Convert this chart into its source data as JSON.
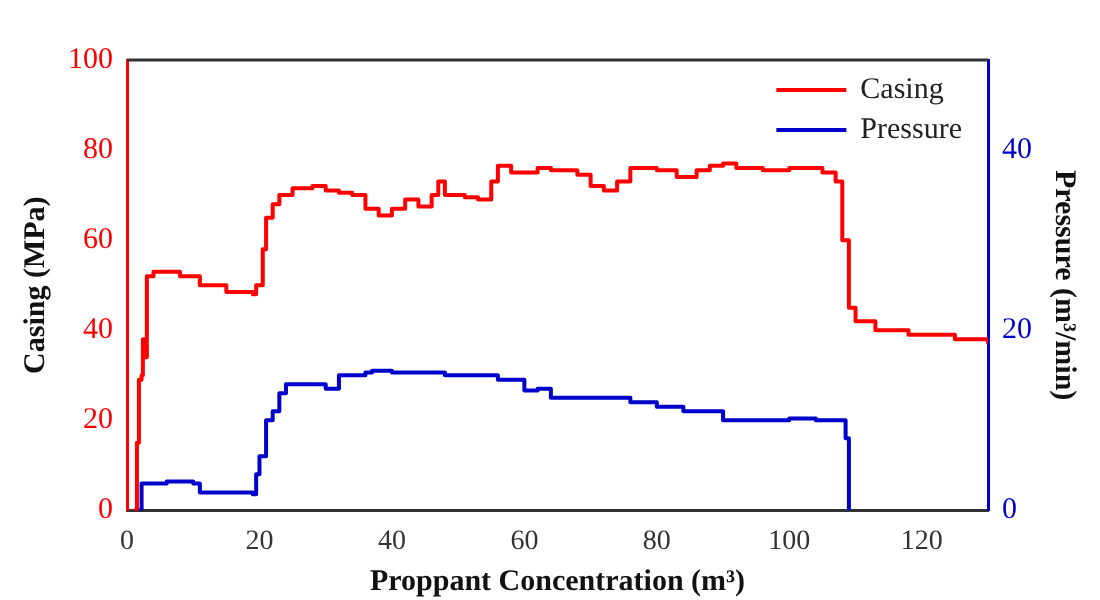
{
  "chart_data": {
    "type": "step",
    "xlabel": "Proppant Concentration (m³)",
    "ylabel": "Casing (MPa)",
    "y2label": "Pressure (m³/min)",
    "xlim": [
      0,
      130
    ],
    "xticks": [
      0,
      20,
      40,
      60,
      80,
      100,
      120
    ],
    "ylim": [
      0,
      100
    ],
    "yticks": [
      0,
      20,
      40,
      60,
      80,
      100
    ],
    "y2lim": [
      0,
      50
    ],
    "y2ticks": [
      0,
      20,
      40
    ],
    "grid": false,
    "legend": "top right",
    "marker": "none",
    "line_style": "solid",
    "series": [
      {
        "name": "Casing",
        "color": "#ff0000",
        "x": [
          1,
          1.5,
          1.8,
          2.2,
          2.4,
          2.6,
          3,
          4,
          8,
          11,
          15,
          19,
          19.5,
          20.5,
          21,
          22,
          23,
          25,
          28,
          30,
          32,
          34,
          36,
          38,
          40,
          42,
          44,
          46,
          47,
          48,
          51,
          53,
          55,
          56,
          58,
          62,
          64,
          68,
          70,
          72,
          74,
          76,
          80,
          83,
          86,
          88,
          90,
          92,
          96,
          100,
          105,
          107,
          108,
          109,
          110,
          113,
          118,
          125,
          130
        ],
        "values": [
          0,
          15,
          29,
          30,
          38,
          34,
          52,
          53,
          52,
          50,
          48.5,
          48,
          50,
          58,
          65,
          68,
          70,
          71.5,
          72,
          71,
          70.5,
          70,
          67,
          65.5,
          67,
          69,
          67.5,
          70,
          73,
          70,
          69.5,
          69,
          73,
          76.5,
          75,
          76,
          75.5,
          74.5,
          72,
          71,
          73,
          76,
          75.5,
          74,
          75.5,
          76.5,
          77,
          76,
          75.5,
          76,
          75,
          73,
          60,
          45,
          42,
          40,
          39,
          38,
          37
        ]
      },
      {
        "name": "Pressure",
        "color": "#0000cc",
        "axis": "y2",
        "x": [
          1.7,
          2.2,
          6,
          10,
          11,
          16,
          19,
          19.5,
          20,
          21,
          22,
          23,
          24,
          29,
          30,
          32,
          36,
          37,
          40,
          48,
          54,
          56,
          60,
          62,
          64,
          70,
          76,
          80,
          84,
          90,
          100,
          104,
          108,
          108.5,
          109
        ],
        "values": [
          0,
          3,
          3.2,
          3,
          2,
          2,
          1.8,
          4,
          6,
          10,
          11,
          13,
          14,
          14,
          13.5,
          15,
          15.3,
          15.5,
          15.3,
          15,
          15,
          14.5,
          13.3,
          13.5,
          12.5,
          12.5,
          12,
          11.5,
          11,
          10,
          10.2,
          10,
          10,
          8,
          0
        ]
      }
    ]
  }
}
